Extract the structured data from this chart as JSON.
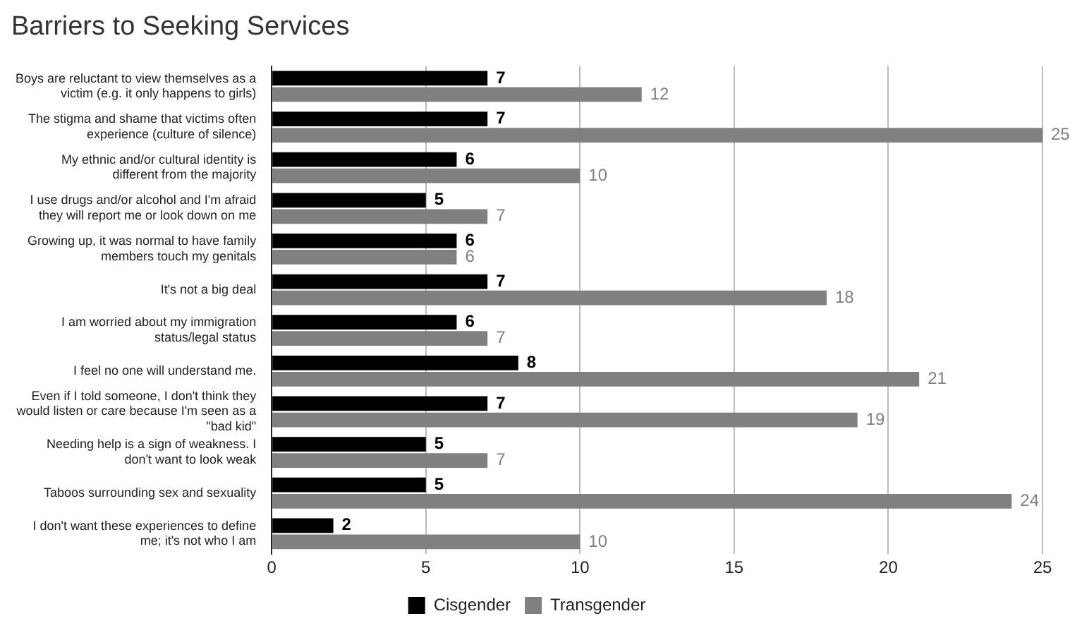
{
  "chart_data": {
    "type": "bar",
    "title": "Barriers to Seeking Services",
    "orientation": "horizontal",
    "categories": [
      "Boys are reluctant to view themselves as a victim (e.g. it only happens to girls)",
      "The stigma and shame that victims often experience (culture of silence)",
      "My ethnic and/or cultural identity is different from the majority",
      "I use drugs and/or alcohol and I'm afraid they will report me or look down on me",
      "Growing up, it was normal to have family members touch my genitals",
      "It's not a big deal",
      "I am worried about my immigration status/legal status",
      "I feel no one will understand me.",
      "Even if I told someone, I don't think they would listen or care because I'm seen as a \"bad kid\"",
      "Needing help is a sign of weakness. I don't want to look weak",
      "Taboos surrounding sex and sexuality",
      "I don't want these experiences to define me; it's not who I am"
    ],
    "series": [
      {
        "name": "Cisgender",
        "color": "#000000",
        "values": [
          7,
          7,
          6,
          5,
          6,
          7,
          6,
          8,
          7,
          5,
          5,
          2
        ]
      },
      {
        "name": "Transgender",
        "color": "#808080",
        "values": [
          12,
          25,
          10,
          7,
          6,
          18,
          7,
          21,
          19,
          7,
          24,
          10
        ]
      }
    ],
    "xlim": [
      0,
      25
    ],
    "xticks": [
      0,
      5,
      10,
      15,
      20,
      25
    ],
    "grid": "x",
    "legend": "bottom",
    "data_labels": true
  }
}
